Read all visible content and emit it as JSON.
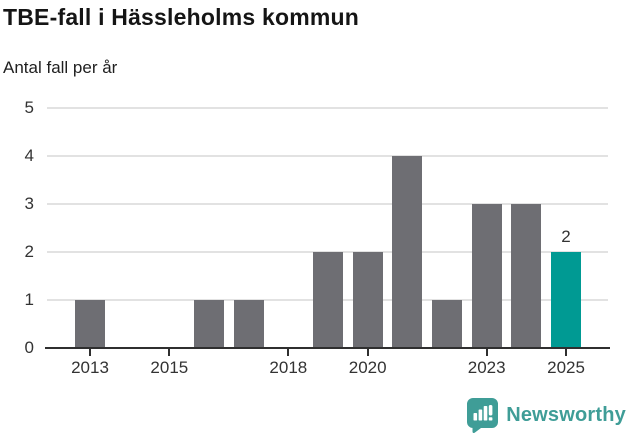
{
  "header": {
    "title": "TBE-fall i Hässleholms kommun",
    "subtitle": "Antal fall per år"
  },
  "chart_data": {
    "type": "bar",
    "title": "TBE-fall i Hässleholms kommun",
    "subtitle_ylabel": "Antal fall per år",
    "categories": [
      2013,
      2014,
      2015,
      2016,
      2017,
      2018,
      2019,
      2020,
      2021,
      2022,
      2023,
      2024,
      2025
    ],
    "values": [
      1,
      0,
      0,
      1,
      1,
      0,
      2,
      2,
      4,
      1,
      3,
      3,
      2
    ],
    "highlight_year": 2025,
    "highlight_value_label": "2",
    "ylim": [
      0,
      5
    ],
    "yticks": [
      0,
      1,
      2,
      3,
      4,
      5
    ],
    "xticks": [
      2013,
      2015,
      2018,
      2020,
      2023,
      2025
    ],
    "grid": true,
    "legend_position": "none",
    "colors": {
      "bar": "#6e6e73",
      "highlight": "#009a93",
      "gridline": "#e2e2e2",
      "axis": "#2f2f2f",
      "axis_text": "#333333"
    }
  },
  "footer": {
    "brand": "Newsworthy",
    "brand_color": "#3f9d97",
    "logo_icon": "bar-chart-speech-bubble-icon"
  }
}
